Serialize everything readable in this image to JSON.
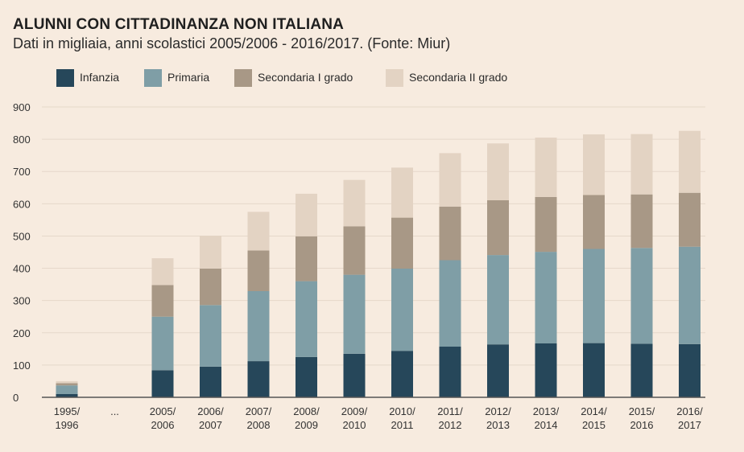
{
  "header": {
    "title": "ALUNNI CON CITTADINANZA NON ITALIANA",
    "subtitle": "Dati in migliaia, anni scolastici 2005/2006 - 2016/2017. (Fonte: Miur)"
  },
  "colors": {
    "background": "#f7ebdf",
    "gridline": "#e6d8ca",
    "axis": "#555555",
    "series": [
      "#26475a",
      "#7f9ea6",
      "#a89886",
      "#e3d3c3"
    ]
  },
  "chart_data": {
    "type": "bar",
    "stacked": true,
    "title": "ALUNNI CON CITTADINANZA NON ITALIANA",
    "subtitle": "Dati in migliaia, anni scolastici 2005/2006 - 2016/2017. (Fonte: Miur)",
    "xlabel": "",
    "ylabel": "",
    "ylim": [
      0,
      900
    ],
    "yticks": [
      0,
      100,
      200,
      300,
      400,
      500,
      600,
      700,
      800,
      900
    ],
    "grid": true,
    "legend": "top-left",
    "categories": [
      "1995/\n1996",
      "...",
      "2005/\n2006",
      "2006/\n2007",
      "2007/\n2008",
      "2008/\n2009",
      "2009/\n2010",
      "2010/\n2011",
      "2011/\n2012",
      "2012/\n2013",
      "2013/\n2014",
      "2014/\n2015",
      "2015/\n2016",
      "2016/\n2017"
    ],
    "series": [
      {
        "name": "Infanzia",
        "values": [
          10,
          null,
          84,
          95,
          112,
          125,
          135,
          144,
          157,
          164,
          167,
          168,
          166,
          165
        ]
      },
      {
        "name": "Primaria",
        "values": [
          27,
          null,
          166,
          191,
          217,
          235,
          245,
          255,
          268,
          277,
          284,
          292,
          297,
          302
        ]
      },
      {
        "name": "Secondaria I grado",
        "values": [
          7,
          null,
          98,
          113,
          126,
          139,
          150,
          158,
          166,
          170,
          170,
          167,
          166,
          167
        ]
      },
      {
        "name": "Secondaria II grado",
        "values": [
          6,
          null,
          83,
          102,
          120,
          132,
          144,
          155,
          166,
          176,
          184,
          188,
          187,
          192
        ]
      }
    ]
  }
}
